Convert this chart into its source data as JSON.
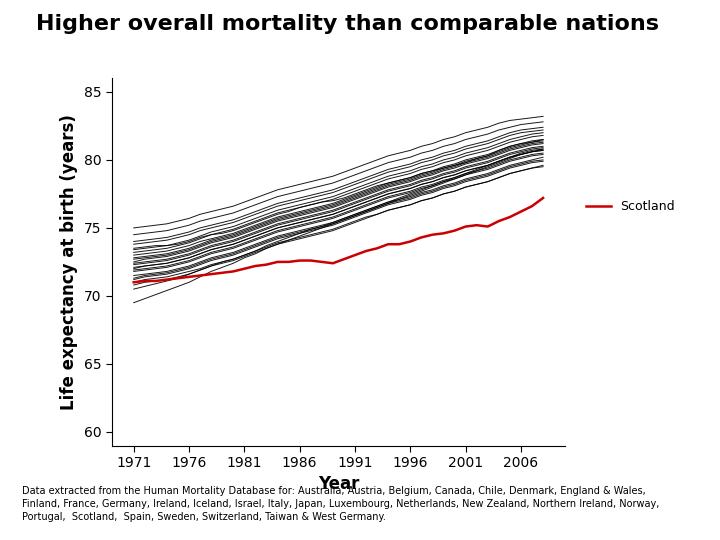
{
  "title": "Higher overall mortality than comparable nations",
  "xlabel": "Year",
  "ylabel": "Life expectancy at birth (years)",
  "scotland_label": "Scotland",
  "footnote": "Data extracted from the Human Mortality Database for: Australia, Austria, Belgium, Canada, Chile, Denmark, England & Wales,\nFinland, France, Germany, Ireland, Iceland, Israel, Italy, Japan, Luxembourg, Netherlands, New Zealand, Northern Ireland, Norway,\nPortugal,  Scotland,  Spain, Sweden, Switzerland, Taiwan & West Germany.",
  "years": [
    1971,
    1972,
    1973,
    1974,
    1975,
    1976,
    1977,
    1978,
    1979,
    1980,
    1981,
    1982,
    1983,
    1984,
    1985,
    1986,
    1987,
    1988,
    1989,
    1990,
    1991,
    1992,
    1993,
    1994,
    1995,
    1996,
    1997,
    1998,
    1999,
    2000,
    2001,
    2002,
    2003,
    2004,
    2005,
    2006,
    2007,
    2008
  ],
  "scotland": [
    71.0,
    71.1,
    71.1,
    71.2,
    71.3,
    71.4,
    71.5,
    71.6,
    71.7,
    71.8,
    72.0,
    72.2,
    72.3,
    72.5,
    72.5,
    72.6,
    72.6,
    72.5,
    72.4,
    72.7,
    73.0,
    73.3,
    73.5,
    73.8,
    73.8,
    74.0,
    74.3,
    74.5,
    74.6,
    74.8,
    75.1,
    75.2,
    75.1,
    75.5,
    75.8,
    76.2,
    76.6,
    77.2
  ],
  "other_nations": [
    [
      73.5,
      73.6,
      73.7,
      73.7,
      73.8,
      74.0,
      74.3,
      74.5,
      74.6,
      74.8,
      75.1,
      75.4,
      75.7,
      76.0,
      76.2,
      76.5,
      76.7,
      76.9,
      77.0,
      77.2,
      77.5,
      77.8,
      78.1,
      78.3,
      78.5,
      78.7,
      79.0,
      79.2,
      79.4,
      79.6,
      79.8,
      80.1,
      80.3,
      80.7,
      81.0,
      81.2,
      81.3,
      81.5
    ],
    [
      71.0,
      71.2,
      71.3,
      71.4,
      71.6,
      71.8,
      72.0,
      72.3,
      72.5,
      72.7,
      73.0,
      73.3,
      73.6,
      73.9,
      74.1,
      74.3,
      74.5,
      74.7,
      74.9,
      75.2,
      75.5,
      75.8,
      76.0,
      76.3,
      76.5,
      76.7,
      77.0,
      77.2,
      77.5,
      77.7,
      78.0,
      78.2,
      78.4,
      78.7,
      79.0,
      79.2,
      79.4,
      79.6
    ],
    [
      72.0,
      72.2,
      72.3,
      72.4,
      72.6,
      72.8,
      73.1,
      73.4,
      73.6,
      73.8,
      74.1,
      74.4,
      74.7,
      75.0,
      75.2,
      75.4,
      75.6,
      75.8,
      76.0,
      76.3,
      76.6,
      76.9,
      77.2,
      77.5,
      77.7,
      77.9,
      78.2,
      78.4,
      78.7,
      78.9,
      79.2,
      79.4,
      79.6,
      79.9,
      80.2,
      80.4,
      80.6,
      80.8
    ],
    [
      73.0,
      73.1,
      73.2,
      73.3,
      73.5,
      73.7,
      74.0,
      74.2,
      74.4,
      74.6,
      74.9,
      75.2,
      75.5,
      75.8,
      76.0,
      76.2,
      76.4,
      76.6,
      76.8,
      77.1,
      77.4,
      77.7,
      78.0,
      78.3,
      78.5,
      78.7,
      79.0,
      79.2,
      79.5,
      79.7,
      80.0,
      80.2,
      80.4,
      80.7,
      81.0,
      81.2,
      81.4,
      81.5
    ],
    [
      72.5,
      72.7,
      72.8,
      72.9,
      73.1,
      73.3,
      73.6,
      73.9,
      74.1,
      74.3,
      74.6,
      74.9,
      75.2,
      75.5,
      75.7,
      75.9,
      76.1,
      76.3,
      76.5,
      76.8,
      77.1,
      77.4,
      77.7,
      78.0,
      78.2,
      78.4,
      78.7,
      78.9,
      79.2,
      79.4,
      79.7,
      79.9,
      80.1,
      80.4,
      80.7,
      80.9,
      81.1,
      81.2
    ],
    [
      71.5,
      71.6,
      71.7,
      71.8,
      72.0,
      72.2,
      72.5,
      72.8,
      73.0,
      73.2,
      73.5,
      73.8,
      74.1,
      74.4,
      74.6,
      74.8,
      75.0,
      75.2,
      75.4,
      75.7,
      76.0,
      76.3,
      76.6,
      76.9,
      77.1,
      77.3,
      77.6,
      77.8,
      78.1,
      78.3,
      78.6,
      78.8,
      79.0,
      79.3,
      79.6,
      79.8,
      80.0,
      80.2
    ],
    [
      74.0,
      74.1,
      74.2,
      74.3,
      74.5,
      74.7,
      75.0,
      75.2,
      75.4,
      75.6,
      75.9,
      76.2,
      76.5,
      76.8,
      77.0,
      77.2,
      77.4,
      77.6,
      77.8,
      78.1,
      78.4,
      78.7,
      79.0,
      79.3,
      79.5,
      79.7,
      80.0,
      80.2,
      80.5,
      80.7,
      81.0,
      81.2,
      81.4,
      81.7,
      82.0,
      82.2,
      82.3,
      82.4
    ],
    [
      72.8,
      72.9,
      73.0,
      73.1,
      73.3,
      73.5,
      73.8,
      74.1,
      74.3,
      74.5,
      74.8,
      75.1,
      75.4,
      75.7,
      75.9,
      76.1,
      76.3,
      76.5,
      76.7,
      77.0,
      77.3,
      77.6,
      77.9,
      78.2,
      78.4,
      78.6,
      78.9,
      79.1,
      79.4,
      79.6,
      79.9,
      80.1,
      80.3,
      80.6,
      80.9,
      81.1,
      81.3,
      81.4
    ],
    [
      71.8,
      71.9,
      72.0,
      72.1,
      72.3,
      72.5,
      72.8,
      73.1,
      73.3,
      73.5,
      73.8,
      74.1,
      74.4,
      74.7,
      74.9,
      75.1,
      75.3,
      75.5,
      75.7,
      76.0,
      76.3,
      76.6,
      76.9,
      77.2,
      77.4,
      77.6,
      77.9,
      78.1,
      78.4,
      78.6,
      78.9,
      79.1,
      79.3,
      79.6,
      79.9,
      80.1,
      80.3,
      80.4
    ],
    [
      73.2,
      73.3,
      73.4,
      73.5,
      73.7,
      73.9,
      74.2,
      74.5,
      74.7,
      74.9,
      75.2,
      75.5,
      75.8,
      76.1,
      76.3,
      76.5,
      76.7,
      76.9,
      77.1,
      77.4,
      77.7,
      78.0,
      78.3,
      78.6,
      78.8,
      79.0,
      79.3,
      79.5,
      79.8,
      80.0,
      80.3,
      80.5,
      80.7,
      81.0,
      81.3,
      81.5,
      81.7,
      81.8
    ],
    [
      70.5,
      70.7,
      70.9,
      71.1,
      71.3,
      71.6,
      71.9,
      72.2,
      72.5,
      72.7,
      73.0,
      73.3,
      73.7,
      74.0,
      74.3,
      74.6,
      74.9,
      75.1,
      75.4,
      75.7,
      76.0,
      76.3,
      76.6,
      76.9,
      77.2,
      77.5,
      77.8,
      78.1,
      78.4,
      78.7,
      79.0,
      79.3,
      79.6,
      79.9,
      80.2,
      80.5,
      80.7,
      80.8
    ],
    [
      72.3,
      72.4,
      72.5,
      72.6,
      72.8,
      73.0,
      73.3,
      73.6,
      73.8,
      74.0,
      74.3,
      74.6,
      74.9,
      75.2,
      75.4,
      75.6,
      75.8,
      76.0,
      76.2,
      76.5,
      76.8,
      77.1,
      77.4,
      77.7,
      77.9,
      78.1,
      78.4,
      78.6,
      78.9,
      79.1,
      79.4,
      79.6,
      79.8,
      80.1,
      80.4,
      80.6,
      80.8,
      80.9
    ],
    [
      74.5,
      74.6,
      74.7,
      74.8,
      75.0,
      75.2,
      75.5,
      75.7,
      75.9,
      76.1,
      76.4,
      76.7,
      77.0,
      77.3,
      77.5,
      77.7,
      77.9,
      78.1,
      78.3,
      78.6,
      78.9,
      79.2,
      79.5,
      79.8,
      80.0,
      80.2,
      80.5,
      80.7,
      81.0,
      81.2,
      81.5,
      81.7,
      81.9,
      82.2,
      82.4,
      82.6,
      82.7,
      82.8
    ],
    [
      71.2,
      71.4,
      71.5,
      71.6,
      71.8,
      72.0,
      72.3,
      72.6,
      72.8,
      73.0,
      73.3,
      73.6,
      73.9,
      74.2,
      74.4,
      74.6,
      74.8,
      75.0,
      75.2,
      75.5,
      75.8,
      76.1,
      76.4,
      76.7,
      76.9,
      77.1,
      77.4,
      77.6,
      77.9,
      78.1,
      78.4,
      78.6,
      78.8,
      79.1,
      79.4,
      79.6,
      79.8,
      79.9
    ],
    [
      72.7,
      72.8,
      72.9,
      73.0,
      73.2,
      73.4,
      73.7,
      74.0,
      74.2,
      74.4,
      74.7,
      75.0,
      75.3,
      75.6,
      75.8,
      76.0,
      76.2,
      76.4,
      76.6,
      76.9,
      77.2,
      77.5,
      77.8,
      78.1,
      78.3,
      78.5,
      78.8,
      79.0,
      79.3,
      79.5,
      79.8,
      80.0,
      80.2,
      80.5,
      80.8,
      81.0,
      81.2,
      81.3
    ],
    [
      69.5,
      69.8,
      70.1,
      70.4,
      70.7,
      71.0,
      71.4,
      71.8,
      72.1,
      72.4,
      72.8,
      73.1,
      73.5,
      73.8,
      74.1,
      74.4,
      74.7,
      75.0,
      75.3,
      75.6,
      75.9,
      76.2,
      76.5,
      76.8,
      77.1,
      77.4,
      77.7,
      78.0,
      78.3,
      78.6,
      78.9,
      79.2,
      79.5,
      79.8,
      80.1,
      80.4,
      80.6,
      80.7
    ],
    [
      73.8,
      73.9,
      74.0,
      74.1,
      74.3,
      74.5,
      74.8,
      75.0,
      75.2,
      75.4,
      75.7,
      76.0,
      76.3,
      76.6,
      76.8,
      77.0,
      77.2,
      77.4,
      77.6,
      77.9,
      78.2,
      78.5,
      78.8,
      79.1,
      79.3,
      79.5,
      79.8,
      80.0,
      80.3,
      80.5,
      80.8,
      81.0,
      81.2,
      81.5,
      81.8,
      82.0,
      82.1,
      82.2
    ],
    [
      71.9,
      72.0,
      72.1,
      72.2,
      72.4,
      72.6,
      72.9,
      73.2,
      73.4,
      73.6,
      73.9,
      74.2,
      74.5,
      74.8,
      75.0,
      75.2,
      75.4,
      75.6,
      75.8,
      76.1,
      76.4,
      76.7,
      77.0,
      77.3,
      77.5,
      77.7,
      78.0,
      78.2,
      78.5,
      78.7,
      79.0,
      79.2,
      79.4,
      79.7,
      80.0,
      80.2,
      80.4,
      80.5
    ],
    [
      72.1,
      72.2,
      72.3,
      72.4,
      72.6,
      72.8,
      73.1,
      73.4,
      73.6,
      73.8,
      74.1,
      74.4,
      74.7,
      75.0,
      75.2,
      75.4,
      75.6,
      75.8,
      76.0,
      76.3,
      76.6,
      76.9,
      77.2,
      77.5,
      77.7,
      77.9,
      78.2,
      78.4,
      78.7,
      78.9,
      79.2,
      79.4,
      79.6,
      79.9,
      80.2,
      80.4,
      80.6,
      80.7
    ],
    [
      70.8,
      71.0,
      71.1,
      71.2,
      71.4,
      71.6,
      71.9,
      72.2,
      72.4,
      72.6,
      72.9,
      73.2,
      73.5,
      73.8,
      74.0,
      74.2,
      74.4,
      74.6,
      74.8,
      75.1,
      75.4,
      75.7,
      76.0,
      76.3,
      76.5,
      76.7,
      77.0,
      77.2,
      77.5,
      77.7,
      78.0,
      78.2,
      78.4,
      78.7,
      79.0,
      79.2,
      79.4,
      79.5
    ],
    [
      75.0,
      75.1,
      75.2,
      75.3,
      75.5,
      75.7,
      76.0,
      76.2,
      76.4,
      76.6,
      76.9,
      77.2,
      77.5,
      77.8,
      78.0,
      78.2,
      78.4,
      78.6,
      78.8,
      79.1,
      79.4,
      79.7,
      80.0,
      80.3,
      80.5,
      80.7,
      81.0,
      81.2,
      81.5,
      81.7,
      82.0,
      82.2,
      82.4,
      82.7,
      82.9,
      83.0,
      83.1,
      83.2
    ],
    [
      73.4,
      73.5,
      73.6,
      73.7,
      73.9,
      74.1,
      74.4,
      74.7,
      74.9,
      75.1,
      75.4,
      75.7,
      76.0,
      76.3,
      76.5,
      76.7,
      76.9,
      77.1,
      77.3,
      77.6,
      77.9,
      78.2,
      78.5,
      78.8,
      79.0,
      79.2,
      79.5,
      79.7,
      80.0,
      80.2,
      80.5,
      80.7,
      80.9,
      81.2,
      81.5,
      81.7,
      81.9,
      82.0
    ],
    [
      72.4,
      72.5,
      72.6,
      72.7,
      72.9,
      73.1,
      73.4,
      73.7,
      73.9,
      74.1,
      74.4,
      74.7,
      75.0,
      75.3,
      75.5,
      75.7,
      75.9,
      76.1,
      76.3,
      76.6,
      76.9,
      77.2,
      77.5,
      77.8,
      78.0,
      78.2,
      78.5,
      78.7,
      79.0,
      79.2,
      79.5,
      79.7,
      79.9,
      80.2,
      80.5,
      80.7,
      80.9,
      81.0
    ],
    [
      71.3,
      71.5,
      71.6,
      71.7,
      71.9,
      72.1,
      72.4,
      72.7,
      72.9,
      73.1,
      73.4,
      73.7,
      74.0,
      74.3,
      74.5,
      74.7,
      74.9,
      75.1,
      75.3,
      75.6,
      75.9,
      76.2,
      76.5,
      76.8,
      77.0,
      77.2,
      77.5,
      77.7,
      78.0,
      78.2,
      78.5,
      78.7,
      78.9,
      79.2,
      79.5,
      79.7,
      79.9,
      80.0
    ]
  ],
  "ylim": [
    59,
    86
  ],
  "yticks": [
    60,
    65,
    70,
    75,
    80,
    85
  ],
  "xticks": [
    1971,
    1976,
    1981,
    1986,
    1991,
    1996,
    2001,
    2006
  ],
  "xlim": [
    1969,
    2010
  ],
  "scotland_color": "#cc0000",
  "other_color": "#000000",
  "scotland_linewidth": 1.8,
  "other_linewidth": 0.7,
  "other_alpha": 0.9,
  "title_fontsize": 16,
  "axis_label_fontsize": 12,
  "tick_fontsize": 10,
  "footnote_fontsize": 7.0,
  "legend_fontsize": 9,
  "bg_color": "#ffffff"
}
